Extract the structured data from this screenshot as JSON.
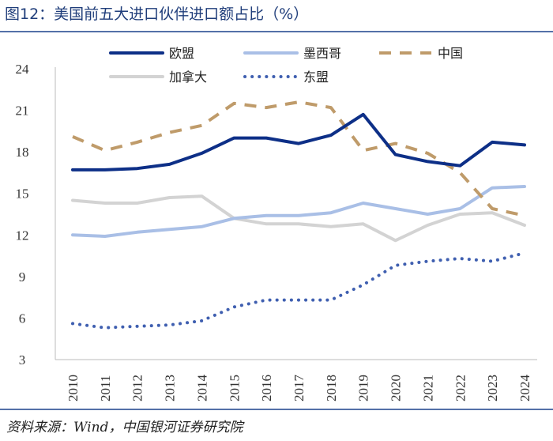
{
  "figure_title": "图12：美国前五大进口伙伴进口额占比（%）",
  "source_note": "资料来源：Wind，中国银河证券研究院",
  "chart_data": {
    "type": "line",
    "title": "美国前五大进口伙伴进口额占比（%）",
    "xlabel": "",
    "ylabel": "",
    "x": [
      "2010",
      "2011",
      "2012",
      "2013",
      "2014",
      "2015",
      "2016",
      "2017",
      "2018",
      "2019",
      "2020",
      "2021",
      "2022",
      "2023",
      "2024"
    ],
    "ylim": [
      3,
      24
    ],
    "yticks": [
      3,
      6,
      9,
      12,
      15,
      18,
      21,
      24
    ],
    "legend_position": "top",
    "series": [
      {
        "name": "欧盟",
        "color": "#0d2f87",
        "style": "solid-thick",
        "values": [
          16.7,
          16.7,
          16.8,
          17.1,
          17.9,
          19.0,
          19.0,
          18.6,
          19.2,
          20.7,
          17.8,
          17.3,
          17.0,
          18.7,
          18.5
        ]
      },
      {
        "name": "墨西哥",
        "color": "#a9bfe6",
        "style": "solid",
        "values": [
          12.0,
          11.9,
          12.2,
          12.4,
          12.6,
          13.2,
          13.4,
          13.4,
          13.6,
          14.3,
          13.9,
          13.5,
          13.9,
          15.4,
          15.5
        ]
      },
      {
        "name": "中国",
        "color": "#bf9b6a",
        "style": "dashed",
        "values": [
          19.1,
          18.1,
          18.7,
          19.4,
          19.9,
          21.5,
          21.2,
          21.6,
          21.2,
          18.1,
          18.6,
          17.9,
          16.5,
          13.9,
          13.4
        ]
      },
      {
        "name": "加拿大",
        "color": "#d3d3d3",
        "style": "solid",
        "values": [
          14.5,
          14.3,
          14.3,
          14.7,
          14.8,
          13.2,
          12.8,
          12.8,
          12.6,
          12.8,
          11.6,
          12.7,
          13.5,
          13.6,
          12.7
        ]
      },
      {
        "name": "东盟",
        "color": "#3f5fb0",
        "style": "dotted",
        "values": [
          5.6,
          5.3,
          5.4,
          5.5,
          5.8,
          6.8,
          7.3,
          7.3,
          7.3,
          8.4,
          9.8,
          10.1,
          10.3,
          10.1,
          10.7
        ]
      }
    ]
  }
}
